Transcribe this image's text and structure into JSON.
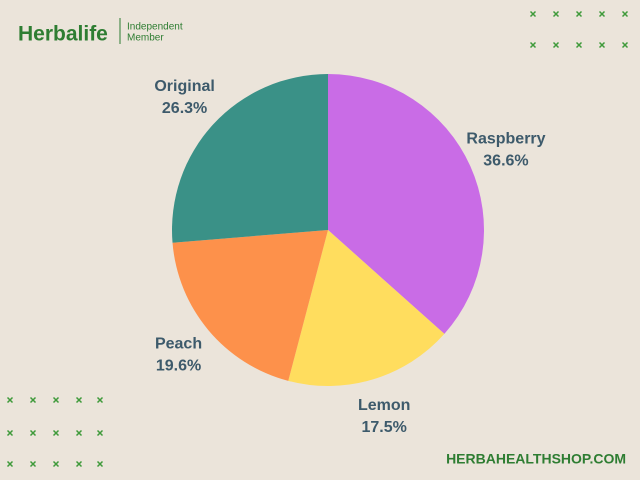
{
  "brand": {
    "name": "Herbalife",
    "tagline": [
      "Independent",
      "Member"
    ]
  },
  "footer": "HERBAHEALTHSHOP.COM",
  "chart_data": {
    "type": "pie",
    "categories": [
      "Raspberry",
      "Lemon",
      "Peach",
      "Original"
    ],
    "values": [
      36.6,
      17.5,
      19.6,
      26.3
    ],
    "value_labels": [
      "36.6%",
      "17.5%",
      "19.6%",
      "26.3%"
    ],
    "colors": [
      "#c96ce6",
      "#ffdd5e",
      "#fd914b",
      "#3a9187"
    ]
  }
}
